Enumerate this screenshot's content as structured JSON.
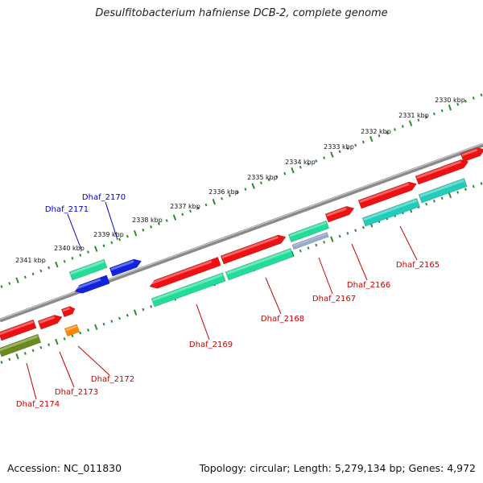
{
  "title": "Desulfitobacterium hafniense DCB-2, complete genome",
  "accession": "Accession: NC_011830",
  "summary": "Topology: circular; Length: 5,279,134 bp; Genes: 4,972",
  "colors": {
    "backbone": "#8a8a8a",
    "tick": "#2e8b2e",
    "label_blue": "#0000cc",
    "label_red": "#cc0000",
    "gene_red": "#ee1111",
    "gene_teal": "#22ccbb",
    "gene_seagreen": "#22dd99",
    "gene_blue": "#1122dd",
    "gene_orange": "#ff8800",
    "gene_olive": "#6a8a1c",
    "gene_grey": "#99aacc"
  },
  "kbp_labels": [
    "2330 kbp",
    "2331 kbp",
    "2332 kbp",
    "2333 kbp",
    "2334 kbp",
    "2335 kbp",
    "2336 kbp",
    "2337 kbp",
    "2338 kbp",
    "2339 kbp",
    "2340 kbp",
    "2341 kbp"
  ],
  "gene_labels": [
    {
      "text": "Dhaf_2170",
      "color": "blue"
    },
    {
      "text": "Dhaf_2171",
      "color": "blue"
    },
    {
      "text": "Dhaf_2165",
      "color": "red"
    },
    {
      "text": "Dhaf_2166",
      "color": "red"
    },
    {
      "text": "Dhaf_2167",
      "color": "red"
    },
    {
      "text": "Dhaf_2168",
      "color": "red"
    },
    {
      "text": "Dhaf_2169",
      "color": "red"
    },
    {
      "text": "Dhaf_2172",
      "color": "red"
    },
    {
      "text": "Dhaf_2173",
      "color": "red"
    },
    {
      "text": "Dhaf_2174",
      "color": "red"
    }
  ]
}
